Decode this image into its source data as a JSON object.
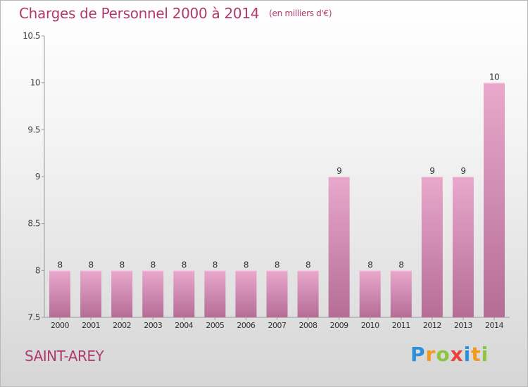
{
  "header": {
    "title": "Charges de Personnel 2000 à 2014",
    "subtitle": "(en milliers d'€)"
  },
  "footer": {
    "town": "SAINT-AREY",
    "logo_letters": [
      {
        "ch": "P",
        "color": "#2e8fd8"
      },
      {
        "ch": "r",
        "color": "#f39a1e"
      },
      {
        "ch": "o",
        "color": "#8cc63f"
      },
      {
        "ch": "x",
        "color": "#e8423a"
      },
      {
        "ch": "i",
        "color": "#2e8fd8"
      },
      {
        "ch": "t",
        "color": "#f39a1e"
      },
      {
        "ch": "i",
        "color": "#8cc63f"
      }
    ]
  },
  "chart_data": {
    "type": "bar",
    "categories": [
      "2000",
      "2001",
      "2002",
      "2003",
      "2004",
      "2005",
      "2006",
      "2007",
      "2008",
      "2009",
      "2010",
      "2011",
      "2012",
      "2013",
      "2014"
    ],
    "values": [
      8,
      8,
      8,
      8,
      8,
      8,
      8,
      8,
      8,
      9,
      8,
      8,
      9,
      9,
      10
    ],
    "data_labels": [
      "8",
      "8",
      "8",
      "8",
      "8",
      "8",
      "8",
      "8",
      "8",
      "9",
      "8",
      "8",
      "9",
      "9",
      "10"
    ],
    "ylim": [
      7.5,
      10.5
    ],
    "yticks": [
      7.5,
      8,
      8.5,
      9,
      9.5,
      10,
      10.5
    ],
    "ytick_labels": [
      "7.5",
      "8",
      "8.5",
      "9",
      "9.5",
      "10",
      "10.5"
    ],
    "grid": false,
    "bar_color": "#d98fb6"
  }
}
